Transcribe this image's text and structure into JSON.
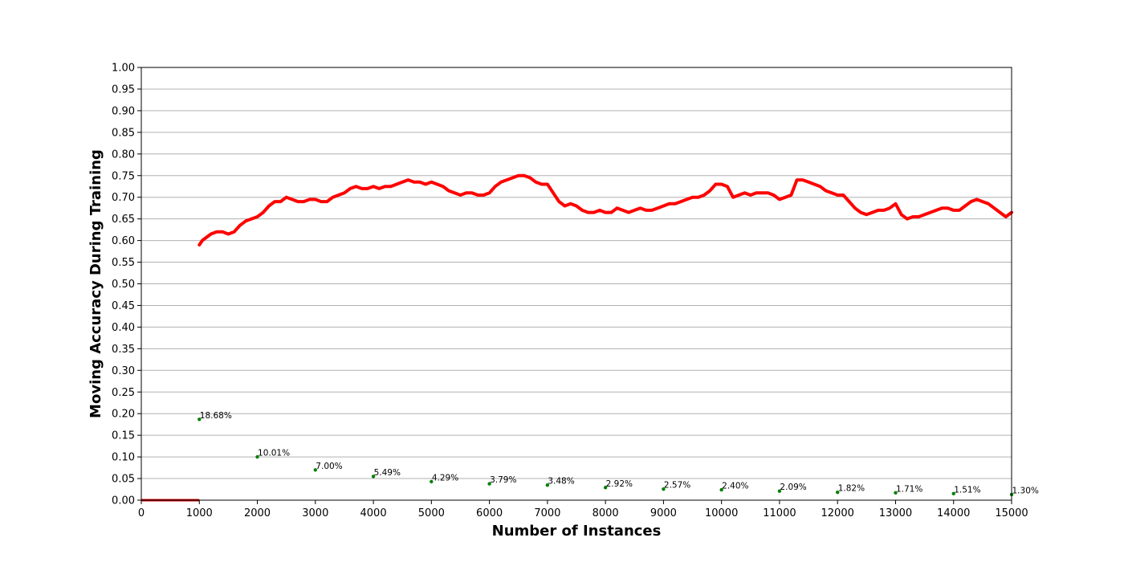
{
  "chart_data": {
    "type": "line",
    "title": "",
    "xlabel": "Number of Instances",
    "ylabel": "Moving Accuracy During Training",
    "xlim": [
      0,
      15000
    ],
    "ylim": [
      0,
      1.0
    ],
    "grid": "horizontal",
    "x_ticks": [
      "0",
      "1000",
      "2000",
      "3000",
      "4000",
      "5000",
      "6000",
      "7000",
      "8000",
      "9000",
      "10000",
      "11000",
      "12000",
      "13000",
      "14000",
      "15000"
    ],
    "y_ticks": [
      "0.00",
      "0.05",
      "0.10",
      "0.15",
      "0.20",
      "0.25",
      "0.30",
      "0.35",
      "0.40",
      "0.45",
      "0.50",
      "0.55",
      "0.60",
      "0.65",
      "0.70",
      "0.75",
      "0.80",
      "0.85",
      "0.90",
      "0.95",
      "1.00"
    ],
    "colors": {
      "accuracy": "#ff0000",
      "initial_segment": "#cc0000",
      "percent_points": "#008000"
    },
    "initial_segment": {
      "x": [
        0,
        1000
      ],
      "y": 0.0
    },
    "accuracy_series": {
      "x": [
        1000,
        1050,
        1100,
        1200,
        1300,
        1400,
        1500,
        1600,
        1700,
        1800,
        1900,
        2000,
        2100,
        2200,
        2300,
        2400,
        2500,
        2600,
        2700,
        2800,
        2900,
        3000,
        3100,
        3200,
        3300,
        3400,
        3500,
        3600,
        3700,
        3800,
        3900,
        4000,
        4100,
        4200,
        4300,
        4400,
        4500,
        4600,
        4700,
        4800,
        4900,
        5000,
        5100,
        5200,
        5300,
        5400,
        5500,
        5600,
        5700,
        5800,
        5900,
        6000,
        6100,
        6200,
        6300,
        6400,
        6500,
        6600,
        6700,
        6800,
        6900,
        7000,
        7100,
        7200,
        7300,
        7400,
        7500,
        7600,
        7700,
        7800,
        7900,
        8000,
        8100,
        8200,
        8300,
        8400,
        8500,
        8600,
        8700,
        8800,
        8900,
        9000,
        9100,
        9200,
        9300,
        9400,
        9500,
        9600,
        9700,
        9800,
        9900,
        10000,
        10100,
        10200,
        10300,
        10400,
        10500,
        10600,
        10700,
        10800,
        10900,
        11000,
        11100,
        11200,
        11300,
        11400,
        11500,
        11600,
        11700,
        11800,
        11900,
        12000,
        12100,
        12200,
        12300,
        12400,
        12500,
        12600,
        12700,
        12800,
        12900,
        13000,
        13100,
        13200,
        13300,
        13400,
        13500,
        13600,
        13700,
        13800,
        13900,
        14000,
        14100,
        14200,
        14300,
        14400,
        14500,
        14600,
        14700,
        14800,
        14900,
        15000
      ],
      "y": [
        0.59,
        0.6,
        0.605,
        0.615,
        0.62,
        0.62,
        0.615,
        0.62,
        0.635,
        0.645,
        0.65,
        0.655,
        0.665,
        0.68,
        0.69,
        0.69,
        0.7,
        0.695,
        0.69,
        0.69,
        0.695,
        0.695,
        0.69,
        0.69,
        0.7,
        0.705,
        0.71,
        0.72,
        0.725,
        0.72,
        0.72,
        0.725,
        0.72,
        0.725,
        0.725,
        0.73,
        0.735,
        0.74,
        0.735,
        0.735,
        0.73,
        0.735,
        0.73,
        0.725,
        0.715,
        0.71,
        0.705,
        0.71,
        0.71,
        0.705,
        0.705,
        0.71,
        0.725,
        0.735,
        0.74,
        0.745,
        0.75,
        0.75,
        0.745,
        0.735,
        0.73,
        0.73,
        0.71,
        0.69,
        0.68,
        0.685,
        0.68,
        0.67,
        0.665,
        0.665,
        0.67,
        0.665,
        0.665,
        0.675,
        0.67,
        0.665,
        0.67,
        0.675,
        0.67,
        0.67,
        0.675,
        0.68,
        0.685,
        0.685,
        0.69,
        0.695,
        0.7,
        0.7,
        0.705,
        0.715,
        0.73,
        0.73,
        0.725,
        0.7,
        0.705,
        0.71,
        0.705,
        0.71,
        0.71,
        0.71,
        0.705,
        0.695,
        0.7,
        0.705,
        0.74,
        0.74,
        0.735,
        0.73,
        0.725,
        0.715,
        0.71,
        0.705,
        0.705,
        0.69,
        0.675,
        0.665,
        0.66,
        0.665,
        0.67,
        0.67,
        0.675,
        0.685,
        0.66,
        0.65,
        0.655,
        0.655,
        0.66,
        0.665,
        0.67,
        0.675,
        0.675,
        0.67,
        0.67,
        0.68,
        0.69,
        0.695,
        0.69,
        0.685,
        0.675,
        0.665,
        0.655,
        0.665
      ]
    },
    "percent_points": [
      {
        "x": 1000,
        "y": 0.1868,
        "label": "18.68%"
      },
      {
        "x": 2000,
        "y": 0.1001,
        "label": "10.01%"
      },
      {
        "x": 3000,
        "y": 0.07,
        "label": "7.00%"
      },
      {
        "x": 4000,
        "y": 0.0549,
        "label": "5.49%"
      },
      {
        "x": 5000,
        "y": 0.0429,
        "label": "4.29%"
      },
      {
        "x": 6000,
        "y": 0.0379,
        "label": "3.79%"
      },
      {
        "x": 7000,
        "y": 0.0348,
        "label": "3.48%"
      },
      {
        "x": 8000,
        "y": 0.0292,
        "label": "2.92%"
      },
      {
        "x": 9000,
        "y": 0.0257,
        "label": "2.57%"
      },
      {
        "x": 10000,
        "y": 0.024,
        "label": "2.40%"
      },
      {
        "x": 11000,
        "y": 0.0209,
        "label": "2.09%"
      },
      {
        "x": 12000,
        "y": 0.0182,
        "label": "1.82%"
      },
      {
        "x": 13000,
        "y": 0.0171,
        "label": "1.71%"
      },
      {
        "x": 14000,
        "y": 0.0151,
        "label": "1.51%"
      },
      {
        "x": 15000,
        "y": 0.013,
        "label": "1.30%"
      }
    ]
  }
}
